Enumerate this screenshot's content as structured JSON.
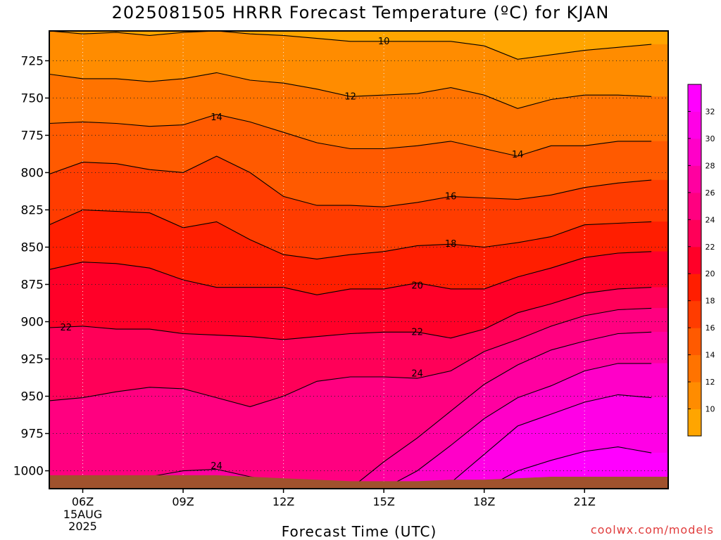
{
  "title": "2025081505 HRRR Forecast Temperature (ºC) for KJAN",
  "credit": "coolwx.com/models",
  "chart_data": {
    "type": "heatmap",
    "title": "2025081505 HRRR Forecast Temperature (ºC) for KJAN",
    "xlabel": "Forecast Time (UTC)",
    "ylabel": "",
    "x_hours": [
      5,
      6,
      7,
      8,
      9,
      10,
      11,
      12,
      13,
      14,
      15,
      16,
      17,
      18,
      19,
      20,
      21,
      22,
      23
    ],
    "x_range": [
      5,
      23.5
    ],
    "x_ticks": [
      {
        "hour": 6,
        "label": "06Z",
        "sub": [
          "15AUG",
          "2025"
        ]
      },
      {
        "hour": 9,
        "label": "09Z"
      },
      {
        "hour": 12,
        "label": "12Z"
      },
      {
        "hour": 15,
        "label": "15Z"
      },
      {
        "hour": 18,
        "label": "18Z"
      },
      {
        "hour": 21,
        "label": "21Z"
      }
    ],
    "y_range_hpa": [
      705,
      1012
    ],
    "y_ticks": [
      725,
      750,
      775,
      800,
      825,
      850,
      875,
      900,
      925,
      950,
      975,
      1000
    ],
    "isotherm_levels": [
      10,
      12,
      14,
      16,
      18,
      20,
      22,
      24,
      26,
      28,
      30,
      32
    ],
    "isotherms_hpa": {
      "10": [
        705,
        707,
        706,
        708,
        706,
        705,
        707,
        708,
        710,
        712,
        712,
        712,
        712,
        715,
        724,
        721,
        718,
        716,
        714
      ],
      "12": [
        734,
        737,
        737,
        739,
        737,
        733,
        738,
        740,
        744,
        749,
        748,
        747,
        743,
        748,
        757,
        751,
        748,
        748,
        749
      ],
      "14": [
        767,
        766,
        767,
        769,
        768,
        761,
        766,
        773,
        780,
        784,
        784,
        782,
        779,
        784,
        789,
        782,
        782,
        779,
        779
      ],
      "16": [
        801,
        793,
        794,
        798,
        800,
        789,
        800,
        816,
        822,
        822,
        823,
        820,
        816,
        817,
        818,
        815,
        810,
        807,
        805
      ],
      "18": [
        835,
        825,
        826,
        827,
        837,
        833,
        845,
        855,
        858,
        855,
        853,
        849,
        848,
        850,
        847,
        843,
        835,
        834,
        833
      ],
      "20": [
        865,
        860,
        861,
        864,
        872,
        877,
        877,
        877,
        882,
        878,
        878,
        874,
        878,
        878,
        870,
        864,
        857,
        854,
        853
      ],
      "22": [
        904,
        903,
        905,
        905,
        908,
        909,
        910,
        912,
        910,
        908,
        907,
        907,
        911,
        905,
        894,
        888,
        881,
        878,
        877
      ],
      "24": [
        953,
        951,
        947,
        944,
        945,
        951,
        957,
        950,
        940,
        937,
        937,
        938,
        933,
        920,
        912,
        903,
        896,
        892,
        891
      ],
      "26": [
        1012,
        1012,
        1011,
        1004,
        1000,
        999,
        1004,
        1008,
        1012,
        1012,
        994,
        978,
        960,
        942,
        929,
        919,
        913,
        908,
        907
      ],
      "28": [
        1012,
        1012,
        1012,
        1012,
        1012,
        1012,
        1012,
        1012,
        1012,
        1012,
        1012,
        1000,
        983,
        965,
        951,
        943,
        933,
        928,
        928
      ],
      "30": [
        1012,
        1012,
        1012,
        1012,
        1012,
        1012,
        1012,
        1012,
        1012,
        1012,
        1012,
        1012,
        1008,
        989,
        970,
        962,
        954,
        949,
        951
      ],
      "32": [
        1012,
        1012,
        1012,
        1012,
        1012,
        1012,
        1012,
        1012,
        1012,
        1012,
        1012,
        1012,
        1012,
        1012,
        1000,
        993,
        987,
        984,
        988
      ]
    },
    "contour_labels": [
      {
        "text": "10",
        "hour": 15.0,
        "hpa": 712
      },
      {
        "text": "12",
        "hour": 14.0,
        "hpa": 749
      },
      {
        "text": "14",
        "hour": 10.0,
        "hpa": 763
      },
      {
        "text": "14",
        "hour": 19.0,
        "hpa": 788
      },
      {
        "text": "16",
        "hour": 17.0,
        "hpa": 816
      },
      {
        "text": "18",
        "hour": 17.0,
        "hpa": 848
      },
      {
        "text": "20",
        "hour": 16.0,
        "hpa": 876
      },
      {
        "text": "22",
        "hour": 5.5,
        "hpa": 904
      },
      {
        "text": "22",
        "hour": 16.0,
        "hpa": 907
      },
      {
        "text": "24",
        "hour": 16.0,
        "hpa": 935
      },
      {
        "text": "24",
        "hour": 10.0,
        "hpa": 997
      }
    ],
    "surface_hpa": [
      1003,
      1003,
      1003,
      1003,
      1003,
      1003,
      1004,
      1005,
      1006,
      1007,
      1007,
      1007,
      1006,
      1006,
      1005,
      1004,
      1004,
      1004,
      1004
    ],
    "colorbar": {
      "ticks": [
        10,
        12,
        14,
        16,
        18,
        20,
        22,
        24,
        26,
        28,
        30,
        32
      ],
      "band_colors": [
        "#ffa500",
        "#ff8c00",
        "#ff7300",
        "#ff5a00",
        "#ff3c00",
        "#ff1e00",
        "#ff0028",
        "#ff0058",
        "#ff0080",
        "#ff00a0",
        "#ff00c8",
        "#ff00e6",
        "#ff00ff"
      ]
    },
    "surface_color": "#a0522d",
    "grid": true
  }
}
